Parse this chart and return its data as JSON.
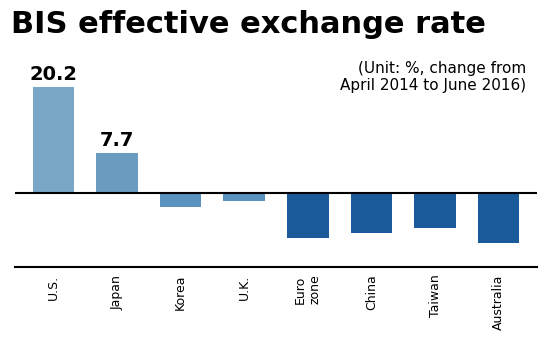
{
  "title": "BIS effective exchange rate",
  "subtitle": "(Unit: %, change from\nApril 2014 to June 2016)",
  "categories": [
    "U.S.",
    "Japan",
    "Korea",
    "U.K.",
    "Euro\nzone",
    "China",
    "Taiwan",
    "Australia"
  ],
  "values": [
    20.2,
    7.7,
    -2.7,
    -1.5,
    -8.5,
    -7.5,
    -6.5,
    -9.5
  ],
  "bar_colors_positive": [
    "#7ba7c7",
    "#7ba7c7"
  ],
  "bar_color_negative_light": "#5b92c0",
  "bar_color_negative_dark": "#1a4f8a",
  "label_20": "20.2",
  "label_77": "7.7",
  "background_color": "#ffffff",
  "title_fontsize": 22,
  "subtitle_fontsize": 11,
  "value_fontsize": 14
}
